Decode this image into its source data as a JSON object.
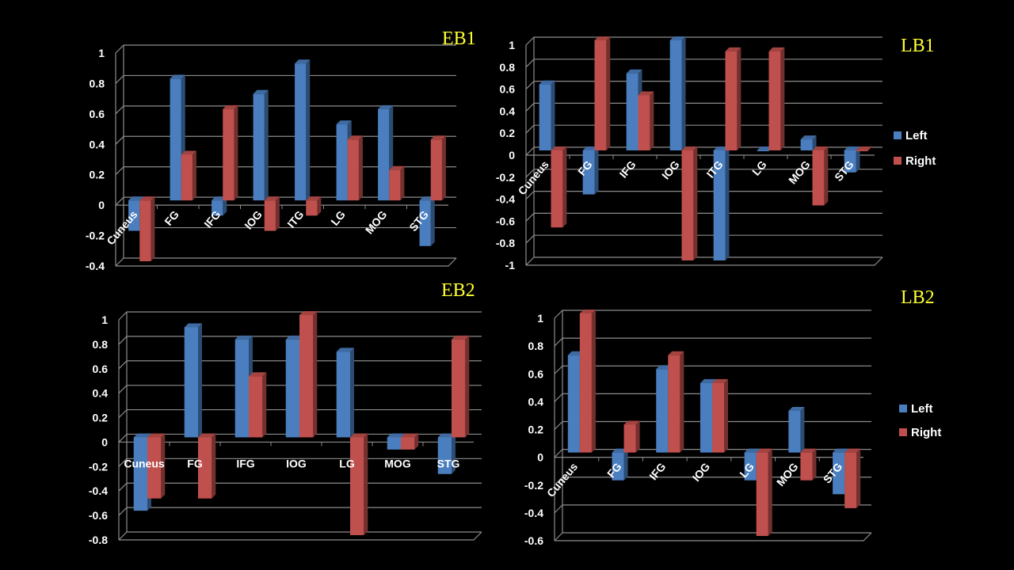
{
  "colors": {
    "left": "#4a7ebf",
    "right": "#c0504d",
    "grid": "#8c8c8c",
    "title": "#ffff33"
  },
  "chart_data": [
    {
      "type": "bar",
      "title": "EB1",
      "categories": [
        "Cuneus",
        "FG",
        "IFG",
        "IOG",
        "ITG",
        "LG",
        "MOG",
        "STG"
      ],
      "series": [
        {
          "name": "Left",
          "values": [
            -0.2,
            0.8,
            -0.1,
            0.7,
            0.9,
            0.5,
            0.6,
            -0.3
          ]
        },
        {
          "name": "Right",
          "values": [
            -0.4,
            0.3,
            0.6,
            -0.2,
            -0.1,
            0.4,
            0.2,
            0.4
          ]
        }
      ],
      "ylim": [
        -0.4,
        1
      ],
      "yticks": [
        "-0.4",
        "-0.2",
        "0",
        "0.2",
        "0.4",
        "0.6",
        "0.8",
        "1"
      ],
      "legend": "none",
      "grid": true
    },
    {
      "type": "bar",
      "title": "LB1",
      "categories": [
        "Cuneus",
        "FG",
        "IFG",
        "IOG",
        "ITG",
        "LG",
        "MOG",
        "STG"
      ],
      "series": [
        {
          "name": "Left",
          "values": [
            0.6,
            -0.4,
            0.7,
            1,
            -1,
            0,
            0.1,
            -0.2
          ]
        },
        {
          "name": "Right",
          "values": [
            -0.7,
            1,
            0.5,
            -1,
            0.9,
            0.9,
            -0.5,
            0
          ]
        }
      ],
      "ylim": [
        -1,
        1
      ],
      "yticks": [
        "-1",
        "-0.8",
        "-0.6",
        "-0.4",
        "-0.2",
        "0",
        "0.2",
        "0.4",
        "0.6",
        "0.8",
        "1"
      ],
      "legend": "right",
      "grid": true
    },
    {
      "type": "bar",
      "title": "EB2",
      "categories": [
        "Cuneus",
        "FG",
        "IFG",
        "IOG",
        "LG",
        "MOG",
        "STG"
      ],
      "series": [
        {
          "name": "Left",
          "values": [
            -0.6,
            0.9,
            0.8,
            0.8,
            0.7,
            -0.1,
            -0.3
          ]
        },
        {
          "name": "Right",
          "values": [
            -0.5,
            -0.5,
            0.5,
            1,
            -0.8,
            -0.1,
            0.8
          ]
        }
      ],
      "ylim": [
        -0.8,
        1
      ],
      "yticks": [
        "-0.8",
        "-0.6",
        "-0.4",
        "-0.2",
        "0",
        "0.2",
        "0.4",
        "0.6",
        "0.8",
        "1"
      ],
      "legend": "none",
      "grid": true
    },
    {
      "type": "bar",
      "title": "LB2",
      "categories": [
        "Cuneus",
        "FG",
        "IFG",
        "IOG",
        "LG",
        "MOG",
        "STG"
      ],
      "series": [
        {
          "name": "Left",
          "values": [
            0.7,
            -0.2,
            0.6,
            0.5,
            -0.2,
            0.3,
            -0.3
          ]
        },
        {
          "name": "Right",
          "values": [
            1,
            0.2,
            0.7,
            0.5,
            -0.6,
            -0.2,
            -0.4
          ]
        }
      ],
      "ylim": [
        -0.6,
        1
      ],
      "yticks": [
        "-0.6",
        "-0.4",
        "-0.2",
        "0",
        "0.2",
        "0.4",
        "0.6",
        "0.8",
        "1"
      ],
      "legend": "right",
      "grid": true
    }
  ]
}
